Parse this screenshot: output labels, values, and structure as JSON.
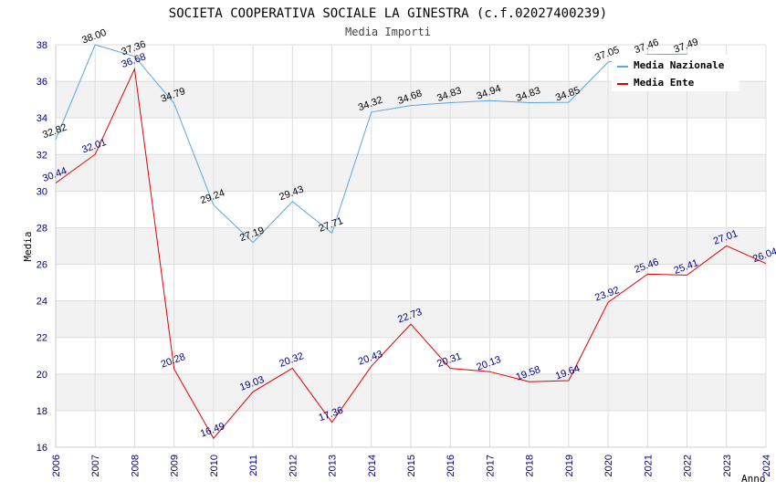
{
  "chart_data": {
    "type": "line",
    "title": "SOCIETA COOPERATIVA SOCIALE LA GINESTRA (c.f.02027400239)",
    "subtitle": "Media Importi",
    "xlabel": "Anno",
    "ylabel": "Media",
    "ylim": [
      16,
      38
    ],
    "yticks": [
      16,
      18,
      20,
      22,
      24,
      26,
      28,
      30,
      32,
      34,
      36,
      38
    ],
    "categories": [
      "2006",
      "2007",
      "2008",
      "2009",
      "2010",
      "2011",
      "2012",
      "2013",
      "2014",
      "2015",
      "2016",
      "2017",
      "2018",
      "2019",
      "2020",
      "2021",
      "2022",
      "2023",
      "2024"
    ],
    "series": [
      {
        "name": "Media Nazionale",
        "color": "#5aa6e6",
        "label_color": "#000000",
        "values": [
          32.82,
          38.0,
          37.36,
          34.79,
          29.24,
          27.19,
          29.43,
          27.71,
          34.32,
          34.68,
          34.83,
          34.94,
          34.83,
          34.85,
          37.05,
          37.46,
          37.49,
          null,
          null
        ],
        "labels": [
          "32.82",
          "38.00",
          "37.36",
          "34.79",
          "29.24",
          "27.19",
          "29.43",
          "27.71",
          "34.32",
          "34.68",
          "34.83",
          "34.94",
          "34.83",
          "34.85",
          "37.05",
          "37.46",
          "37.49",
          "",
          ""
        ]
      },
      {
        "name": "Media Ente",
        "color": "#e00000",
        "label_color": "#000080",
        "values": [
          30.44,
          32.01,
          36.68,
          20.28,
          16.49,
          19.03,
          20.32,
          17.36,
          20.43,
          22.73,
          20.31,
          20.13,
          19.58,
          19.64,
          23.92,
          25.46,
          25.41,
          27.01,
          26.04
        ],
        "labels": [
          "30.44",
          "32.01",
          "36.68",
          "20.28",
          "16.49",
          "19.03",
          "20.32",
          "17.36",
          "20.43",
          "22.73",
          "20.31",
          "20.13",
          "19.58",
          "19.64",
          "23.92",
          "25.46",
          "25.41",
          "27.01",
          "26.04"
        ]
      }
    ],
    "legend": [
      "Media Nazionale",
      "Media Ente"
    ],
    "legend_position": "top-right",
    "grid": true
  }
}
